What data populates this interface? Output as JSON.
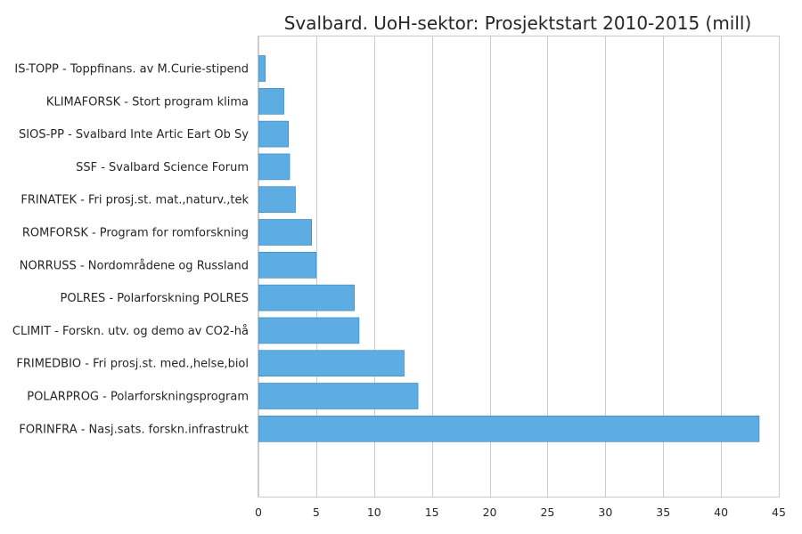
{
  "chart_data": {
    "type": "bar",
    "orientation": "horizontal",
    "title": "Svalbard. UoH-sektor: Prosjektstart 2010-2015 (mill)",
    "xlabel": "",
    "ylabel": "",
    "xlim": [
      0,
      45
    ],
    "xticks": [
      "0",
      "5",
      "10",
      "15",
      "20",
      "25",
      "30",
      "35",
      "40",
      "45"
    ],
    "grid": true,
    "bar_color": "#5DADE2",
    "categories": [
      "IS-TOPP - Toppfinans. av M.Curie-stipend",
      "KLIMAFORSK - Stort program klima",
      "SIOS-PP - Svalbard Inte Artic Eart Ob Sy",
      "SSF - Svalbard Science Forum",
      "FRINATEK - Fri prosj.st. mat.,naturv.,tek",
      "ROMFORSK - Program for romforskning",
      "NORRUSS - Nordområdene og Russland",
      "POLRES - Polarforskning POLRES",
      "CLIMIT - Forskn. utv. og demo av CO2-hå",
      "FRIMEDBIO - Fri prosj.st. med.,helse,biol",
      "POLARPROG - Polarforskningsprogram",
      "FORINFRA - Nasj.sats. forskn.infrastrukt"
    ],
    "values": [
      0.6,
      2.2,
      2.6,
      2.7,
      3.2,
      4.6,
      5.0,
      8.3,
      8.7,
      12.6,
      13.8,
      43.3
    ]
  }
}
